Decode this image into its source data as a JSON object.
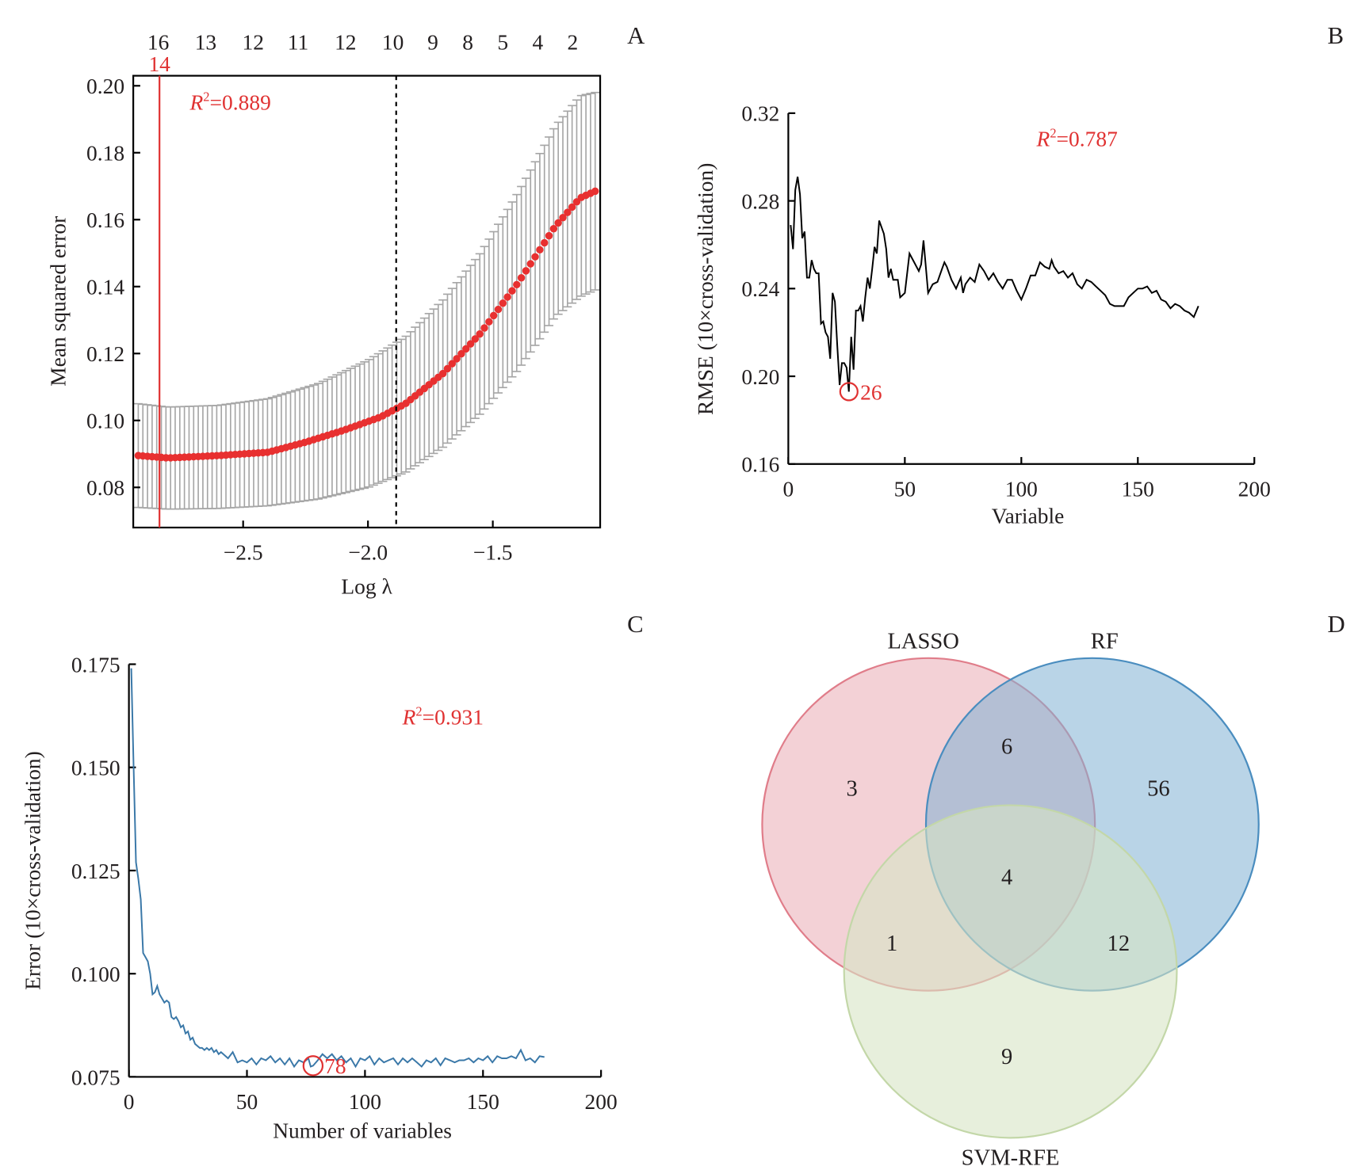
{
  "panels": {
    "A": "A",
    "B": "B",
    "C": "C",
    "D": "D"
  },
  "chart_data": [
    {
      "panel": "A",
      "type": "scatter",
      "title": "",
      "xlabel": "Log λ",
      "ylabel": "Mean squared error",
      "xlim": [
        -2.94,
        -1.07
      ],
      "ylim": [
        0.068,
        0.203
      ],
      "xticks": [
        -2.5,
        -2.0,
        -1.5
      ],
      "xtick_labels": [
        "−2.5",
        "−2.0",
        "−1.5"
      ],
      "yticks": [
        0.08,
        0.1,
        0.12,
        0.14,
        0.16,
        0.18,
        0.2
      ],
      "ytick_labels": [
        "0.08",
        "0.10",
        "0.12",
        "0.14",
        "0.16",
        "0.18",
        "0.20"
      ],
      "top_axis_labels": [
        "16",
        "13",
        "12",
        "11",
        "12",
        "10",
        "9",
        "8",
        "5",
        "4",
        "2"
      ],
      "top_axis_x": [
        -2.84,
        -2.65,
        -2.46,
        -2.28,
        -2.09,
        -1.9,
        -1.74,
        -1.6,
        -1.46,
        -1.32,
        -1.18
      ],
      "annotation": "R²=0.889",
      "annotation_r": "R",
      "annotation_sup": "2",
      "annotation_value": "=0.889",
      "lambda_min": {
        "x": -2.835,
        "label": "14",
        "color": "#e03232"
      },
      "lambda_1se": {
        "x": -1.887,
        "style": "dotted"
      },
      "n_points": 100,
      "x_start": -2.92,
      "x_end": -1.09,
      "series_note": "MSE mean curve with ±1 SE error bars",
      "mean_keypoints": [
        [
          -2.92,
          0.0895
        ],
        [
          -2.8,
          0.0888
        ],
        [
          -2.6,
          0.0895
        ],
        [
          -2.4,
          0.0905
        ],
        [
          -2.25,
          0.0935
        ],
        [
          -2.1,
          0.097
        ],
        [
          -1.95,
          0.101
        ],
        [
          -1.85,
          0.105
        ],
        [
          -1.7,
          0.114
        ],
        [
          -1.55,
          0.126
        ],
        [
          -1.4,
          0.141
        ],
        [
          -1.25,
          0.158
        ],
        [
          -1.15,
          0.1665
        ],
        [
          -1.09,
          0.1685
        ]
      ],
      "upper_keypoints": [
        [
          -2.92,
          0.105
        ],
        [
          -2.8,
          0.104
        ],
        [
          -2.6,
          0.1045
        ],
        [
          -2.4,
          0.1065
        ],
        [
          -2.2,
          0.111
        ],
        [
          -2.0,
          0.118
        ],
        [
          -1.85,
          0.125
        ],
        [
          -1.7,
          0.136
        ],
        [
          -1.55,
          0.15
        ],
        [
          -1.4,
          0.168
        ],
        [
          -1.25,
          0.188
        ],
        [
          -1.15,
          0.197
        ],
        [
          -1.09,
          0.198
        ]
      ],
      "lower_keypoints": [
        [
          -2.92,
          0.074
        ],
        [
          -2.8,
          0.0735
        ],
        [
          -2.6,
          0.0737
        ],
        [
          -2.4,
          0.0745
        ],
        [
          -2.2,
          0.0765
        ],
        [
          -2.0,
          0.08
        ],
        [
          -1.85,
          0.0845
        ],
        [
          -1.7,
          0.092
        ],
        [
          -1.55,
          0.102
        ],
        [
          -1.4,
          0.115
        ],
        [
          -1.25,
          0.131
        ],
        [
          -1.15,
          0.137
        ],
        [
          -1.09,
          0.139
        ]
      ],
      "colors": {
        "points": "#e83030",
        "error_bars": "#a6a6a6",
        "min_line": "#e03232"
      }
    },
    {
      "panel": "B",
      "type": "line",
      "title": "",
      "xlabel": "Variable",
      "ylabel": "RMSE (10×cross-validation)",
      "xlim": [
        0,
        200
      ],
      "ylim": [
        0.16,
        0.32
      ],
      "xticks": [
        0,
        50,
        100,
        150,
        200
      ],
      "xtick_labels": [
        "0",
        "50",
        "100",
        "150",
        "200"
      ],
      "yticks": [
        0.16,
        0.2,
        0.24,
        0.28,
        0.32
      ],
      "ytick_labels": [
        "0.16",
        "0.20",
        "0.24",
        "0.28",
        "0.32"
      ],
      "annotation_r": "R",
      "annotation_sup": "2",
      "annotation_value": "=0.787",
      "optimum": {
        "x": 26,
        "y": 0.193,
        "label": "26"
      },
      "color": "#000000",
      "x": [
        1,
        2,
        3,
        4,
        5,
        6,
        7,
        8,
        9,
        10,
        11,
        12,
        13,
        14,
        15,
        16,
        17,
        18,
        19,
        20,
        21,
        22,
        23,
        24,
        25,
        26,
        27,
        28,
        29,
        30,
        31,
        32,
        33,
        34,
        35,
        36,
        37,
        38,
        39,
        40,
        41,
        42,
        43,
        44,
        45,
        46,
        47,
        48,
        49,
        50,
        52,
        54,
        56,
        57,
        58,
        60,
        62,
        64,
        66,
        67,
        68,
        70,
        72,
        74,
        75,
        76,
        78,
        80,
        82,
        84,
        86,
        88,
        90,
        92,
        94,
        96,
        98,
        100,
        102,
        104,
        106,
        108,
        110,
        112,
        113,
        114,
        116,
        118,
        120,
        122,
        124,
        126,
        128,
        130,
        132,
        134,
        136,
        138,
        140,
        142,
        144,
        146,
        148,
        150,
        152,
        154,
        156,
        158,
        160,
        162,
        164,
        166,
        168,
        170,
        172,
        174,
        176
      ],
      "values": [
        0.269,
        0.258,
        0.285,
        0.291,
        0.283,
        0.263,
        0.266,
        0.245,
        0.245,
        0.253,
        0.249,
        0.247,
        0.247,
        0.224,
        0.225,
        0.22,
        0.218,
        0.208,
        0.238,
        0.234,
        0.214,
        0.196,
        0.206,
        0.206,
        0.204,
        0.193,
        0.218,
        0.203,
        0.23,
        0.23,
        0.232,
        0.225,
        0.236,
        0.245,
        0.24,
        0.249,
        0.259,
        0.256,
        0.271,
        0.268,
        0.265,
        0.258,
        0.245,
        0.249,
        0.244,
        0.244,
        0.244,
        0.236,
        0.237,
        0.238,
        0.256,
        0.252,
        0.248,
        0.251,
        0.262,
        0.238,
        0.242,
        0.243,
        0.249,
        0.252,
        0.25,
        0.244,
        0.24,
        0.245,
        0.238,
        0.242,
        0.245,
        0.243,
        0.251,
        0.248,
        0.244,
        0.247,
        0.243,
        0.24,
        0.244,
        0.244,
        0.239,
        0.235,
        0.24,
        0.246,
        0.246,
        0.252,
        0.25,
        0.249,
        0.253,
        0.25,
        0.247,
        0.248,
        0.245,
        0.247,
        0.242,
        0.24,
        0.244,
        0.243,
        0.241,
        0.239,
        0.237,
        0.233,
        0.232,
        0.232,
        0.232,
        0.236,
        0.238,
        0.24,
        0.24,
        0.241,
        0.238,
        0.239,
        0.235,
        0.234,
        0.231,
        0.233,
        0.232,
        0.23,
        0.229,
        0.227,
        0.232
      ],
      "gap_note": "0.28 tick intermediate"
    },
    {
      "panel": "C",
      "type": "line",
      "title": "",
      "xlabel": "Number of variables",
      "ylabel": "Error (10×cross-validation)",
      "xlim": [
        0,
        200
      ],
      "ylim": [
        0.075,
        0.175
      ],
      "xticks": [
        0,
        50,
        100,
        150,
        200
      ],
      "xtick_labels": [
        "0",
        "50",
        "100",
        "150",
        "200"
      ],
      "yticks": [
        0.075,
        0.1,
        0.125,
        0.15,
        0.175
      ],
      "ytick_labels": [
        "0.075",
        "0.100",
        "0.125",
        "0.150",
        "0.175"
      ],
      "annotation_r": "R",
      "annotation_sup": "2",
      "annotation_value": "=0.931",
      "optimum": {
        "x": 78,
        "y": 0.0777,
        "label": "78"
      },
      "color": "#3a78a8",
      "x": [
        1,
        2,
        3,
        4,
        5,
        6,
        7,
        8,
        9,
        10,
        11,
        12,
        13,
        14,
        15,
        16,
        17,
        18,
        19,
        20,
        21,
        22,
        23,
        24,
        25,
        26,
        27,
        28,
        29,
        30,
        31,
        32,
        33,
        34,
        35,
        36,
        37,
        38,
        39,
        40,
        42,
        44,
        46,
        48,
        50,
        52,
        54,
        56,
        58,
        60,
        62,
        64,
        66,
        68,
        70,
        72,
        74,
        76,
        77,
        78,
        80,
        82,
        84,
        86,
        88,
        90,
        92,
        94,
        96,
        98,
        100,
        102,
        104,
        106,
        108,
        110,
        112,
        114,
        116,
        118,
        120,
        122,
        124,
        126,
        128,
        130,
        132,
        134,
        136,
        138,
        140,
        142,
        144,
        146,
        148,
        150,
        152,
        154,
        156,
        158,
        160,
        162,
        164,
        166,
        168,
        170,
        172,
        174,
        176
      ],
      "values": [
        0.174,
        0.15,
        0.127,
        0.123,
        0.118,
        0.105,
        0.104,
        0.103,
        0.1,
        0.095,
        0.0955,
        0.097,
        0.095,
        0.094,
        0.093,
        0.0935,
        0.093,
        0.0895,
        0.089,
        0.0895,
        0.0885,
        0.087,
        0.0875,
        0.0855,
        0.086,
        0.084,
        0.0845,
        0.083,
        0.0825,
        0.082,
        0.082,
        0.0815,
        0.082,
        0.0815,
        0.082,
        0.081,
        0.0815,
        0.0805,
        0.081,
        0.0805,
        0.0795,
        0.081,
        0.0785,
        0.079,
        0.0785,
        0.0795,
        0.078,
        0.0795,
        0.079,
        0.08,
        0.0785,
        0.0795,
        0.078,
        0.0795,
        0.0775,
        0.079,
        0.0785,
        0.0795,
        0.0775,
        0.0777,
        0.079,
        0.0805,
        0.0795,
        0.0805,
        0.079,
        0.08,
        0.0785,
        0.0795,
        0.0775,
        0.0795,
        0.079,
        0.08,
        0.078,
        0.0795,
        0.0785,
        0.079,
        0.0795,
        0.078,
        0.0795,
        0.0785,
        0.0795,
        0.0785,
        0.0775,
        0.079,
        0.0785,
        0.0795,
        0.0778,
        0.0795,
        0.079,
        0.0785,
        0.079,
        0.079,
        0.0795,
        0.0785,
        0.0795,
        0.079,
        0.08,
        0.0785,
        0.08,
        0.0795,
        0.0795,
        0.08,
        0.0795,
        0.0815,
        0.079,
        0.0795,
        0.0785,
        0.08,
        0.0798
      ]
    },
    {
      "panel": "D",
      "type": "venn",
      "sets": [
        {
          "name": "LASSO",
          "color": "#e8a4ae",
          "stroke": "#e07d8a"
        },
        {
          "name": "RF",
          "color": "#7fb0d3",
          "stroke": "#4a8dbf"
        },
        {
          "name": "SVM-RFE",
          "color": "#d7e5c4",
          "stroke": "#c3d7a8"
        }
      ],
      "regions": [
        {
          "sets": [
            "LASSO"
          ],
          "value": 3
        },
        {
          "sets": [
            "RF"
          ],
          "value": 56
        },
        {
          "sets": [
            "SVM-RFE"
          ],
          "value": 9
        },
        {
          "sets": [
            "LASSO",
            "RF"
          ],
          "value": 6
        },
        {
          "sets": [
            "LASSO",
            "SVM-RFE"
          ],
          "value": 1
        },
        {
          "sets": [
            "RF",
            "SVM-RFE"
          ],
          "value": 12
        },
        {
          "sets": [
            "LASSO",
            "RF",
            "SVM-RFE"
          ],
          "value": 4
        }
      ]
    }
  ]
}
